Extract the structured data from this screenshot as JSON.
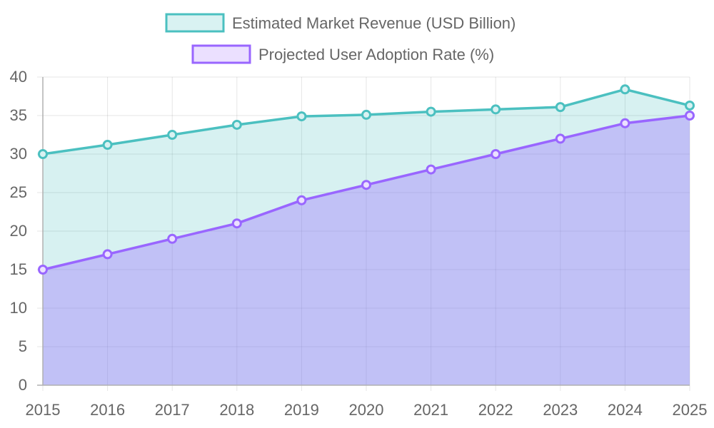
{
  "chart_data": {
    "type": "area",
    "title": "",
    "xlabel": "",
    "ylabel": "",
    "categories": [
      "2015",
      "2016",
      "2017",
      "2018",
      "2019",
      "2020",
      "2021",
      "2022",
      "2023",
      "2024",
      "2025"
    ],
    "ylim": [
      0,
      40
    ],
    "yticks": [
      "0",
      "5",
      "10",
      "15",
      "20",
      "25",
      "30",
      "35",
      "40"
    ],
    "grid": true,
    "legend_position": "top",
    "series": [
      {
        "name": "Estimated Market Revenue (USD Billion)",
        "values": [
          30,
          31.2,
          32.5,
          33.8,
          34.9,
          35.1,
          35.5,
          35.8,
          36.1,
          38.4,
          36.3
        ],
        "line_color": "#4bc0c0",
        "fill_color": "#d9f2f2"
      },
      {
        "name": "Projected User Adoption Rate (%)",
        "values": [
          15,
          17,
          19,
          21,
          24,
          26,
          28,
          30,
          32,
          34,
          35
        ],
        "line_color": "#9966ff",
        "fill_color": "#ebe0ff"
      }
    ]
  }
}
